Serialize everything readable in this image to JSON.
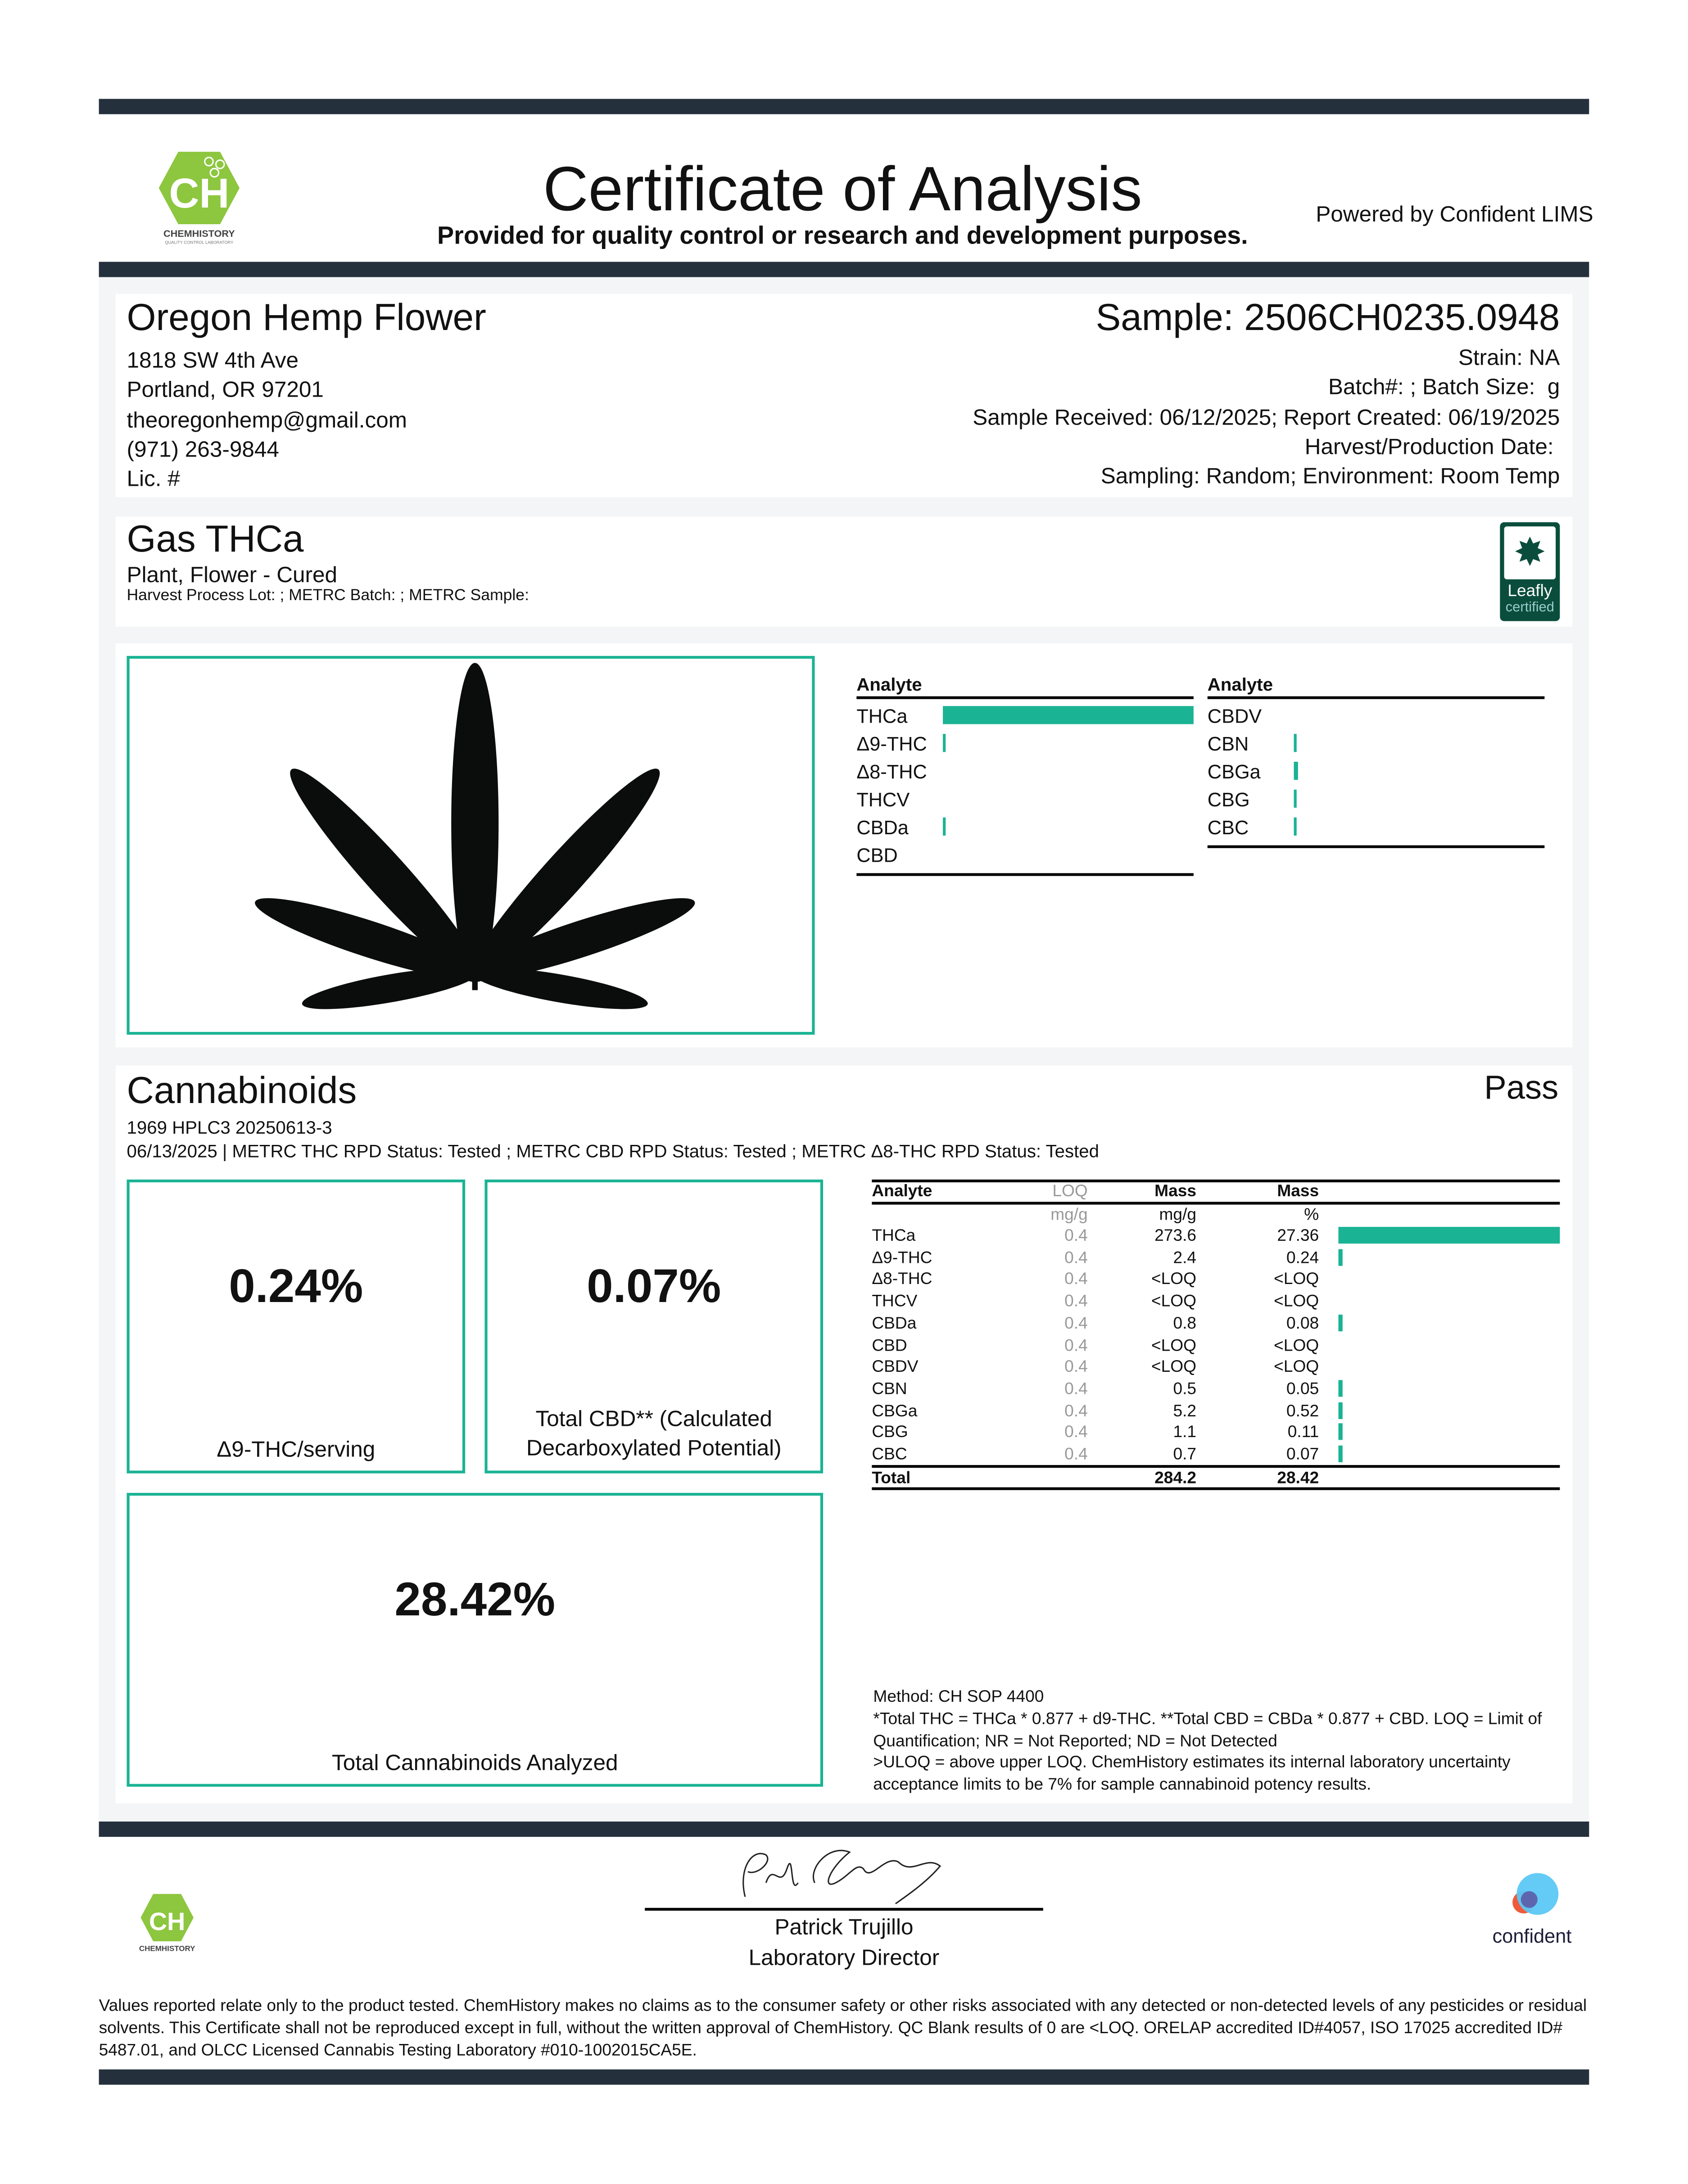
{
  "header": {
    "title": "Certificate of Analysis",
    "subtitle": "Provided for quality control or research and development purposes.",
    "powered_by": "Powered by Confident LIMS",
    "lab_logo_text": "CHEMHISTORY",
    "lab_logo_tagline": "QUALITY CONTROL LABORATORY"
  },
  "client": {
    "name": "Oregon Hemp Flower",
    "address1": "1818 SW 4th Ave",
    "address2": "Portland, OR 97201",
    "email": "theoregonhemp@gmail.com",
    "phone": "(971) 263-9844",
    "license": "Lic. #"
  },
  "sample": {
    "id": "Sample: 2506CH0235.0948",
    "strain": "Strain: NA",
    "batch": "Batch#: ; Batch Size:  g",
    "dates": "Sample Received: 06/12/2025; Report Created: 06/19/2025",
    "harvest": "Harvest/Production Date: ",
    "sampling": "Sampling: Random; Environment: Room Temp"
  },
  "product": {
    "name": "Gas THCa",
    "type": "Plant, Flower - Cured",
    "lot_info": "Harvest Process Lot: ; METRC Batch: ; METRC Sample:",
    "badge_line1": "Leafly",
    "badge_line2": "certified"
  },
  "summary": {
    "header": "Analyte",
    "left": [
      {
        "name": "THCa",
        "pct": 27.36
      },
      {
        "name": "Δ9-THC",
        "pct": 0.24
      },
      {
        "name": "Δ8-THC",
        "pct": 0
      },
      {
        "name": "THCV",
        "pct": 0
      },
      {
        "name": "CBDa",
        "pct": 0.08
      },
      {
        "name": "CBD",
        "pct": 0
      }
    ],
    "right": [
      {
        "name": "CBDV",
        "pct": 0
      },
      {
        "name": "CBN",
        "pct": 0.05
      },
      {
        "name": "CBGa",
        "pct": 0.52
      },
      {
        "name": "CBG",
        "pct": 0.11
      },
      {
        "name": "CBC",
        "pct": 0.07
      }
    ]
  },
  "cannabinoids": {
    "title": "Cannabinoids",
    "result": "Pass",
    "instrument": "1969 HPLC3 20250613-3",
    "status_line": "06/13/2025 | METRC THC RPD Status: Tested ; METRC CBD RPD Status: Tested ; METRC Δ8-THC RPD Status: Tested",
    "thc_value": "0.24%",
    "thc_label": "Δ9-THC/serving",
    "cbd_value": "0.07%",
    "cbd_label1": "Total CBD** (Calculated",
    "cbd_label2": "Decarboxylated Potential)",
    "total_value": "28.42%",
    "total_label": "Total Cannabinoids Analyzed",
    "table": {
      "headers": [
        "Analyte",
        "LOQ",
        "Mass",
        "Mass"
      ],
      "units": [
        "",
        "mg/g",
        "mg/g",
        "%"
      ],
      "rows": [
        {
          "analyte": "THCa",
          "loq": "0.4",
          "mg": "273.6",
          "pct": "27.36",
          "bar": 27.36
        },
        {
          "analyte": "Δ9-THC",
          "loq": "0.4",
          "mg": "2.4",
          "pct": "0.24",
          "bar": 0.24
        },
        {
          "analyte": "Δ8-THC",
          "loq": "0.4",
          "mg": "<LOQ",
          "pct": "<LOQ",
          "bar": 0
        },
        {
          "analyte": "THCV",
          "loq": "0.4",
          "mg": "<LOQ",
          "pct": "<LOQ",
          "bar": 0
        },
        {
          "analyte": "CBDa",
          "loq": "0.4",
          "mg": "0.8",
          "pct": "0.08",
          "bar": 0.08
        },
        {
          "analyte": "CBD",
          "loq": "0.4",
          "mg": "<LOQ",
          "pct": "<LOQ",
          "bar": 0
        },
        {
          "analyte": "CBDV",
          "loq": "0.4",
          "mg": "<LOQ",
          "pct": "<LOQ",
          "bar": 0
        },
        {
          "analyte": "CBN",
          "loq": "0.4",
          "mg": "0.5",
          "pct": "0.05",
          "bar": 0.05
        },
        {
          "analyte": "CBGa",
          "loq": "0.4",
          "mg": "5.2",
          "pct": "0.52",
          "bar": 0.52
        },
        {
          "analyte": "CBG",
          "loq": "0.4",
          "mg": "1.1",
          "pct": "0.11",
          "bar": 0.11
        },
        {
          "analyte": "CBC",
          "loq": "0.4",
          "mg": "0.7",
          "pct": "0.07",
          "bar": 0.07
        }
      ],
      "total": {
        "label": "Total",
        "mg": "284.2",
        "pct": "28.42"
      }
    },
    "notes": [
      "Method: CH SOP 4400",
      "*Total THC = THCa * 0.877 + d9-THC. **Total CBD = CBDa * 0.877 + CBD. LOQ = Limit of Quantification; NR = Not Reported; ND = Not Detected",
      ">ULOQ = above upper LOQ. ChemHistory estimates its internal laboratory uncertainty acceptance limits to be 7% for sample cannabinoid potency results."
    ]
  },
  "signature": {
    "name": "Patrick Trujillo",
    "role": "Laboratory Director"
  },
  "footer": {
    "confident_logo": "confident",
    "disclaimer": "Values reported relate only to the product tested. ChemHistory makes no claims as to the consumer safety or other risks associated with any detected or non-detected levels of any pesticides or residual solvents. This Certificate shall not be reproduced except in full, without the written approval of ChemHistory. QC Blank results of 0 are <LOQ.  ORELAP accredited ID#4057, ISO 17025 accredited ID# 5487.01, and OLCC Licensed Cannabis Testing Laboratory #010-1002015CA5E."
  },
  "colors": {
    "accent": "#1ab394",
    "bars": "#25303d",
    "logo_green": "#8dc63f",
    "leafly": "#0b4d3c"
  }
}
